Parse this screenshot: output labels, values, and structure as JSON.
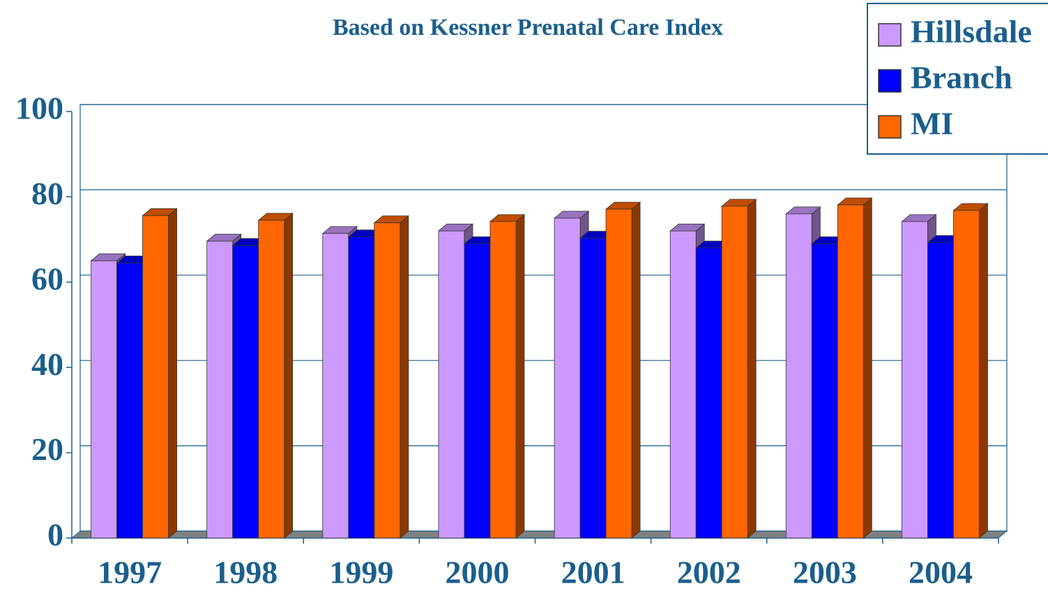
{
  "chart_data": {
    "type": "bar",
    "title": "Based on Kessner Prenatal Care Index",
    "categories": [
      "1997",
      "1998",
      "1999",
      "2000",
      "2001",
      "2002",
      "2003",
      "2004"
    ],
    "series": [
      {
        "name": "Hillsdale",
        "color": "#cc99ff",
        "values": [
          65,
          69.6,
          71.4,
          72,
          75,
          72,
          76,
          74.2
        ]
      },
      {
        "name": "Branch",
        "color": "#0000ff",
        "values": [
          64.5,
          68.6,
          70.6,
          69,
          70.3,
          68,
          69,
          69.3
        ]
      },
      {
        "name": "MI",
        "color": "#ff6600",
        "values": [
          75.6,
          74.5,
          73.9,
          74.2,
          77.1,
          77.8,
          78.1,
          76.8
        ]
      }
    ],
    "ylim": [
      0,
      100
    ],
    "yticks": [
      0,
      20,
      40,
      60,
      80,
      100
    ],
    "grid": true,
    "legend": "top-right"
  }
}
